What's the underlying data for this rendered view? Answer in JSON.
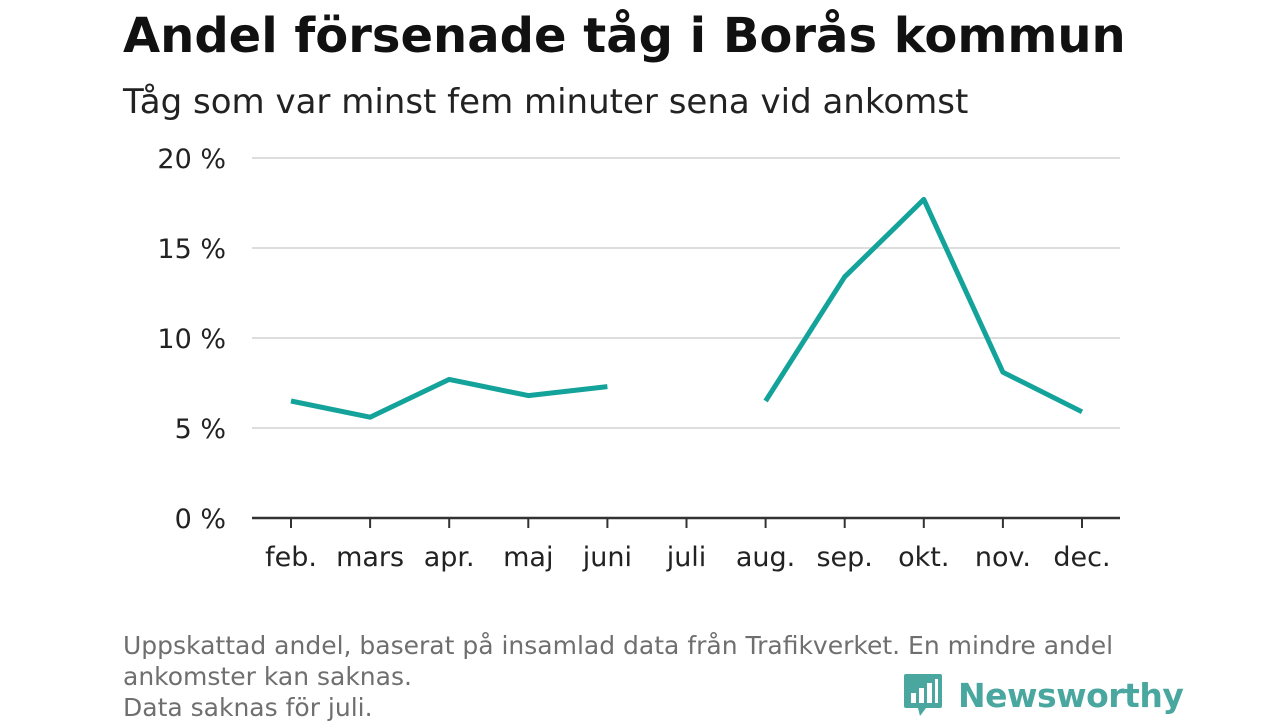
{
  "header": {
    "title": "Andel försenade tåg i Borås kommun",
    "subtitle": "Tåg som var minst fem minuter sena vid ankomst"
  },
  "chart_data": {
    "type": "line",
    "title": "Andel försenade tåg i Borås kommun",
    "subtitle": "Tåg som var minst fem minuter sena vid ankomst",
    "categories": [
      "feb.",
      "mars",
      "apr.",
      "maj",
      "juni",
      "juli",
      "aug.",
      "sep.",
      "okt.",
      "nov.",
      "dec."
    ],
    "series": [
      {
        "values": [
          6.5,
          5.6,
          7.7,
          6.8,
          7.3,
          null,
          6.5,
          13.4,
          17.7,
          8.1,
          5.9
        ]
      }
    ],
    "ylim": [
      0,
      20
    ],
    "yticks": [
      0,
      5,
      10,
      15,
      20
    ],
    "ytick_labels": [
      "0 %",
      "5 %",
      "10 %",
      "15 %",
      "20 %"
    ],
    "xlabel": "",
    "ylabel": "",
    "grid": true,
    "line_color": "#14a39a"
  },
  "footer": {
    "note_lines": [
      "Uppskattad andel, baserat på insamlad data från Trafikverket. En mindre andel",
      "ankomster kan saknas.",
      "Data saknas för juli."
    ],
    "brand": "Newsworthy",
    "brand_icon": "newsworthy-logo-icon",
    "brand_color": "#4aa79f"
  }
}
